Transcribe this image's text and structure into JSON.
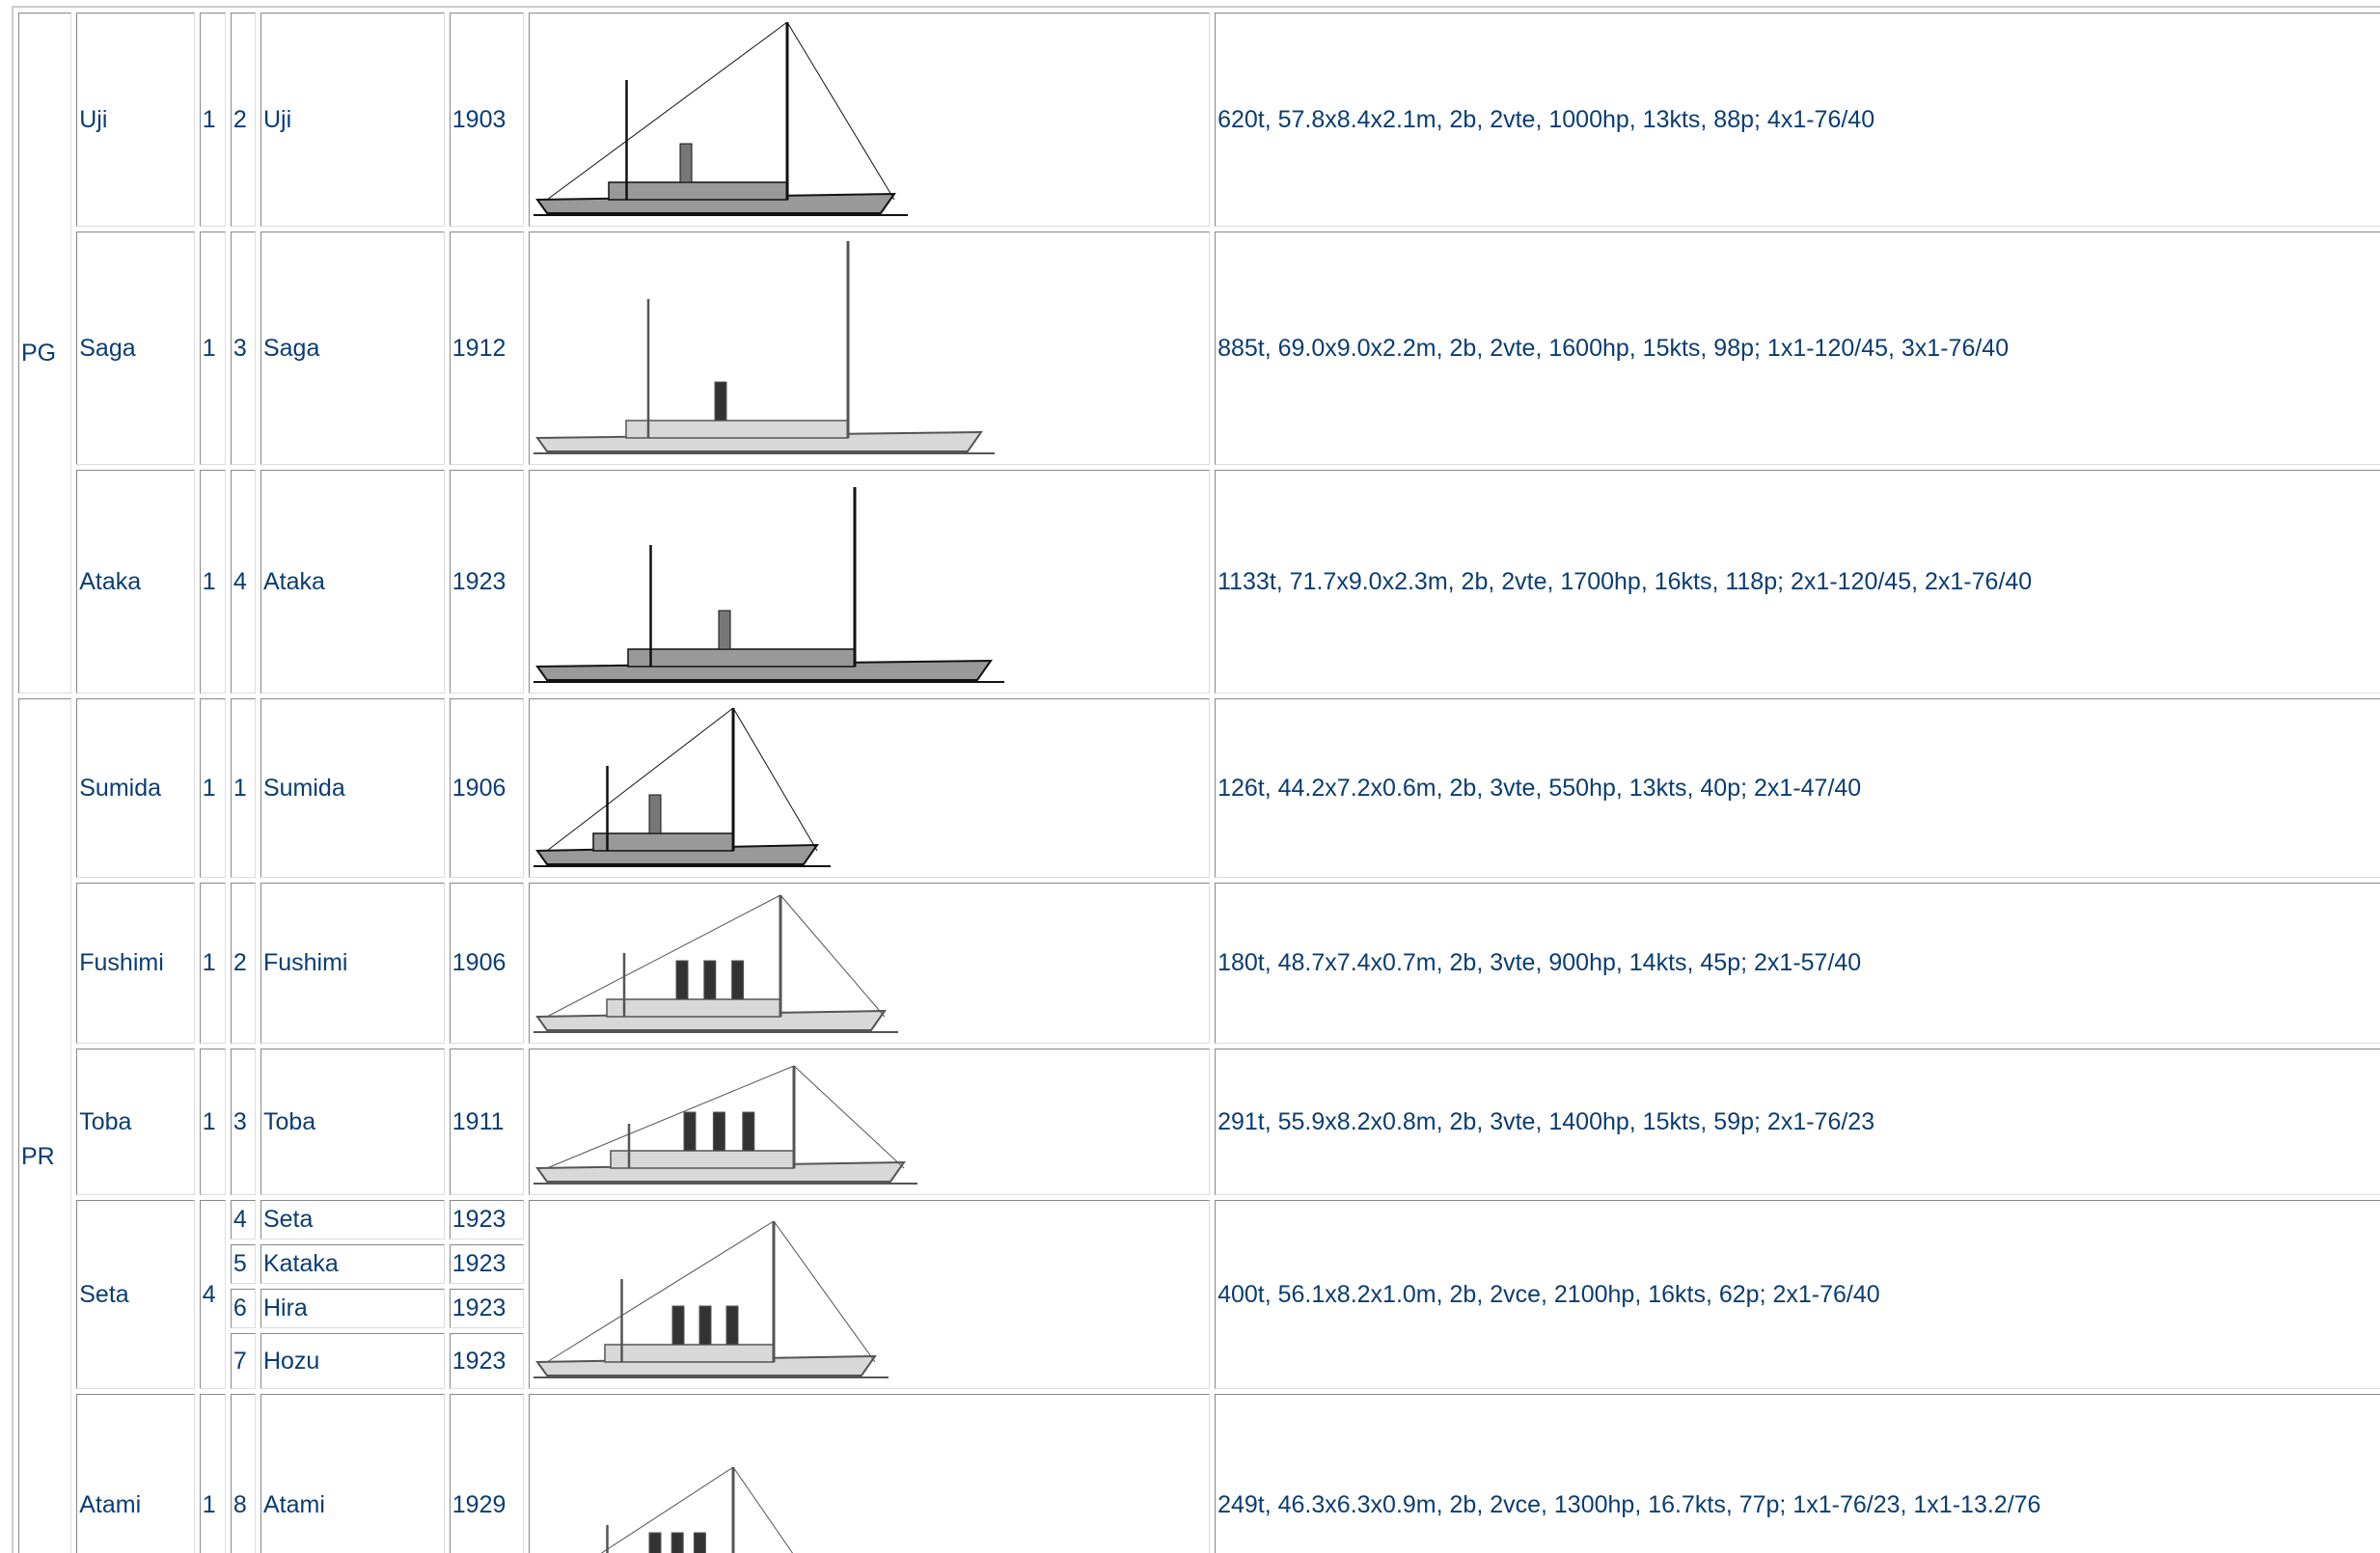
{
  "groups": [
    {
      "type": "PG",
      "classes": [
        {
          "name": "Uji",
          "count": 1,
          "ships": [
            {
              "num": 2,
              "name": "Uji",
              "year": 1903
            }
          ],
          "specs": "620t, 57.8x8.4x2.1m, 2b, 2vte, 1000hp, 13kts, 88p; 4x1-76/40"
        },
        {
          "name": "Saga",
          "count": 1,
          "ships": [
            {
              "num": 3,
              "name": "Saga",
              "year": 1912
            }
          ],
          "specs": "885t, 69.0x9.0x2.2m, 2b, 2vte, 1600hp, 15kts, 98p; 1x1-120/45, 3x1-76/40"
        },
        {
          "name": "Ataka",
          "count": 1,
          "ships": [
            {
              "num": 4,
              "name": "Ataka",
              "year": 1923
            }
          ],
          "specs": "1133t, 71.7x9.0x2.3m, 2b, 2vte, 1700hp, 16kts, 118p; 2x1-120/45, 2x1-76/40"
        }
      ]
    },
    {
      "type": "PR",
      "classes": [
        {
          "name": "Sumida",
          "count": 1,
          "ships": [
            {
              "num": 1,
              "name": "Sumida",
              "year": 1906
            }
          ],
          "specs": "126t, 44.2x7.2x0.6m, 2b, 3vte, 550hp, 13kts, 40p; 2x1-47/40"
        },
        {
          "name": "Fushimi",
          "count": 1,
          "ships": [
            {
              "num": 2,
              "name": "Fushimi",
              "year": 1906
            }
          ],
          "specs": "180t, 48.7x7.4x0.7m, 2b, 3vte, 900hp, 14kts, 45p; 2x1-57/40"
        },
        {
          "name": "Toba",
          "count": 1,
          "ships": [
            {
              "num": 3,
              "name": "Toba",
              "year": 1911
            }
          ],
          "specs": "291t, 55.9x8.2x0.8m, 2b, 3vte, 1400hp, 15kts, 59p; 2x1-76/23"
        },
        {
          "name": "Seta",
          "count": 4,
          "ships": [
            {
              "num": 4,
              "name": "Seta",
              "year": 1923
            },
            {
              "num": 5,
              "name": "Kataka",
              "year": 1923
            },
            {
              "num": 6,
              "name": "Hira",
              "year": 1923
            },
            {
              "num": 7,
              "name": "Hozu",
              "year": 1923
            }
          ],
          "specs": "400t, 56.1x8.2x1.0m, 2b, 2vce, 2100hp, 16kts, 62p; 2x1-76/40"
        },
        {
          "name": "Atami",
          "count": 1,
          "ships": [
            {
              "num": 8,
              "name": "Atami",
              "year": 1929
            }
          ],
          "specs": "249t, 46.3x6.3x0.9m, 2b, 2vce, 1300hp, 16.7kts, 77p; 1x1-76/23, 1x1-13.2/76"
        }
      ]
    }
  ]
}
